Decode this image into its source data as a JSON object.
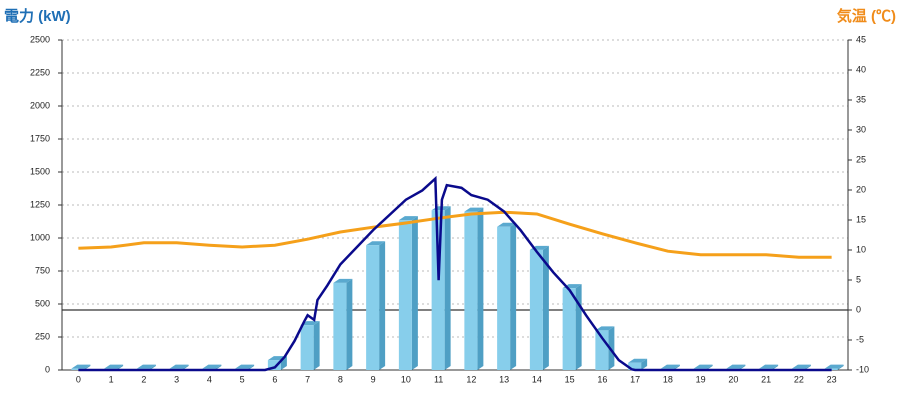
{
  "chart_data": {
    "type": "bar",
    "title_left": "電力 (kW)",
    "title_right": "気温 (℃)",
    "categories": [
      "0",
      "1",
      "2",
      "3",
      "4",
      "5",
      "6",
      "7",
      "8",
      "9",
      "10",
      "11",
      "12",
      "13",
      "14",
      "15",
      "16",
      "17",
      "18",
      "19",
      "20",
      "21",
      "22",
      "23"
    ],
    "values": [
      10,
      10,
      10,
      10,
      10,
      10,
      75,
      340,
      660,
      945,
      1135,
      1210,
      1200,
      1085,
      910,
      620,
      300,
      55,
      10,
      10,
      10,
      10,
      10,
      10
    ],
    "color": "#87ceeb",
    "power_line": {
      "color": "#0a0a8c",
      "x": [
        0,
        5.7,
        6.0,
        6.3,
        6.6,
        6.9,
        7.0,
        7.2,
        7.3,
        7.6,
        8.0,
        9.0,
        10.0,
        10.5,
        10.9,
        11.0,
        11.1,
        11.25,
        11.7,
        12.0,
        12.5,
        13.0,
        13.5,
        14.0,
        14.5,
        15.0,
        15.5,
        16.0,
        16.5,
        16.9,
        17.0,
        23.0
      ],
      "values": [
        0,
        0,
        20,
        100,
        220,
        370,
        415,
        380,
        530,
        640,
        800,
        1060,
        1290,
        1360,
        1450,
        680,
        1290,
        1400,
        1380,
        1325,
        1290,
        1200,
        1060,
        895,
        740,
        605,
        415,
        240,
        75,
        5,
        0,
        0
      ]
    },
    "temperature": {
      "color": "#f5a01a",
      "axis": "y2",
      "values": [
        10.3,
        10.5,
        11.2,
        11.2,
        10.8,
        10.5,
        10.8,
        11.8,
        13,
        13.8,
        14.5,
        15.3,
        16,
        16.3,
        16,
        14.3,
        12.7,
        11.2,
        9.8,
        9.2,
        9.2,
        9.2,
        8.8,
        8.8
      ]
    },
    "ylim": [
      0,
      2500
    ],
    "yticks": [
      0,
      250,
      500,
      750,
      1000,
      1250,
      1500,
      1750,
      2000,
      2250,
      2500
    ],
    "y2lim": [
      -10,
      45
    ],
    "y2ticks": [
      -10,
      -5,
      0,
      5,
      10,
      15,
      20,
      25,
      30,
      35,
      40,
      45
    ],
    "grid": true
  }
}
